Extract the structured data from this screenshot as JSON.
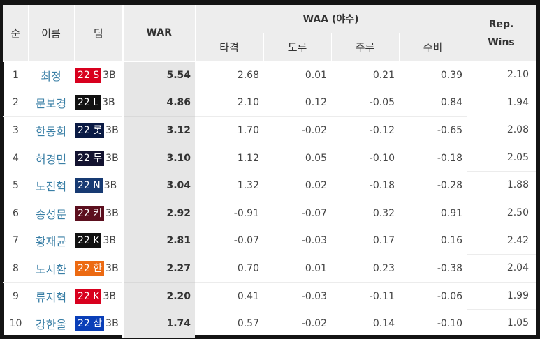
{
  "headers": {
    "rank": "순",
    "name": "이름",
    "team": "팀",
    "war": "WAR",
    "waa": "WAA (야수)",
    "batting": "타격",
    "baserunning_steal": "도루",
    "baserunning": "주루",
    "fielding": "수비",
    "rep_line1": "Rep.",
    "rep_line2": "Wins"
  },
  "rows": [
    {
      "rank": "1",
      "name": "최정",
      "team_year": "22",
      "team_abbr": "S",
      "team_color": "#d8001e",
      "pos": "3B",
      "war": "5.54",
      "batting": "2.68",
      "steal": "0.01",
      "running": "0.21",
      "fielding": "0.39",
      "rep": "2.10"
    },
    {
      "rank": "2",
      "name": "문보경",
      "team_year": "22",
      "team_abbr": "L",
      "team_color": "#111111",
      "pos": "3B",
      "war": "4.86",
      "batting": "2.10",
      "steal": "0.12",
      "running": "-0.05",
      "fielding": "0.84",
      "rep": "1.94"
    },
    {
      "rank": "3",
      "name": "한동희",
      "team_year": "22",
      "team_abbr": "롯",
      "team_color": "#0a1a44",
      "pos": "3B",
      "war": "3.12",
      "batting": "1.70",
      "steal": "-0.02",
      "running": "-0.12",
      "fielding": "-0.65",
      "rep": "2.08"
    },
    {
      "rank": "4",
      "name": "허경민",
      "team_year": "22",
      "team_abbr": "두",
      "team_color": "#131330",
      "pos": "3B",
      "war": "3.10",
      "batting": "1.12",
      "steal": "0.05",
      "running": "-0.10",
      "fielding": "-0.18",
      "rep": "2.05"
    },
    {
      "rank": "5",
      "name": "노진혁",
      "team_year": "22",
      "team_abbr": "N",
      "team_color": "#173a72",
      "pos": "3B",
      "war": "3.04",
      "batting": "1.32",
      "steal": "0.02",
      "running": "-0.18",
      "fielding": "-0.28",
      "rep": "1.88"
    },
    {
      "rank": "6",
      "name": "송성문",
      "team_year": "22",
      "team_abbr": "키",
      "team_color": "#5c0f1e",
      "pos": "3B",
      "war": "2.92",
      "batting": "-0.91",
      "steal": "-0.07",
      "running": "0.32",
      "fielding": "0.91",
      "rep": "2.50"
    },
    {
      "rank": "7",
      "name": "황재균",
      "team_year": "22",
      "team_abbr": "K",
      "team_color": "#111111",
      "pos": "3B",
      "war": "2.81",
      "batting": "-0.07",
      "steal": "-0.03",
      "running": "0.17",
      "fielding": "0.16",
      "rep": "2.42"
    },
    {
      "rank": "8",
      "name": "노시환",
      "team_year": "22",
      "team_abbr": "한",
      "team_color": "#ec6a12",
      "pos": "3B",
      "war": "2.27",
      "batting": "0.70",
      "steal": "0.01",
      "running": "0.23",
      "fielding": "-0.38",
      "rep": "2.04"
    },
    {
      "rank": "9",
      "name": "류지혁",
      "team_year": "22",
      "team_abbr": "K",
      "team_color": "#d8001e",
      "pos": "3B",
      "war": "2.20",
      "batting": "0.41",
      "steal": "-0.03",
      "running": "-0.11",
      "fielding": "-0.06",
      "rep": "1.99"
    },
    {
      "rank": "10",
      "name": "강한울",
      "team_year": "22",
      "team_abbr": "삼",
      "team_color": "#0a3fb8",
      "pos": "3B",
      "war": "1.74",
      "batting": "0.57",
      "steal": "-0.02",
      "running": "0.14",
      "fielding": "-0.10",
      "rep": "1.05"
    }
  ]
}
